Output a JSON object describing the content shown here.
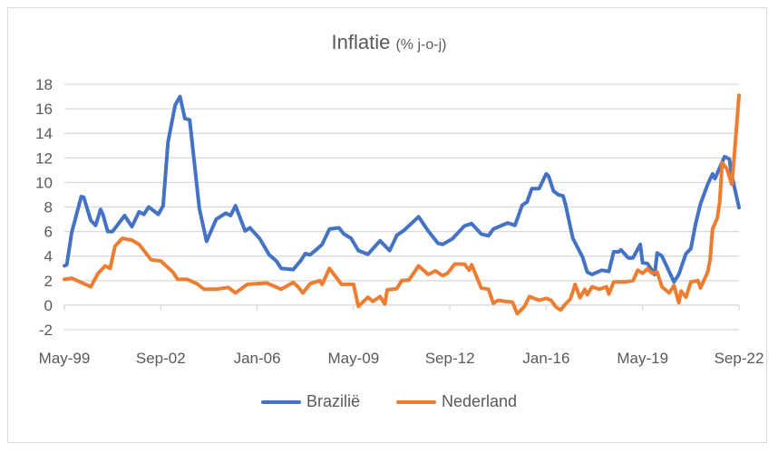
{
  "chart_data": {
    "type": "line",
    "title": "Inflatie",
    "subtitle": "(% j-o-j)",
    "xlabel": "",
    "ylabel": "",
    "ylim": [
      -2,
      18
    ],
    "yticks": [
      -2,
      0,
      2,
      4,
      6,
      8,
      10,
      12,
      14,
      16,
      18
    ],
    "xlim": [
      "1999-05",
      "2022-09"
    ],
    "xtick_labels": [
      "May-99",
      "Sep-02",
      "Jan-06",
      "May-09",
      "Sep-12",
      "Jan-16",
      "May-19",
      "Sep-22"
    ],
    "xticks": [
      "1999-05",
      "2002-09",
      "2006-01",
      "2009-05",
      "2012-09",
      "2016-01",
      "2019-05",
      "2022-09"
    ],
    "grid": true,
    "legend_position": "bottom",
    "series": [
      {
        "name": "Brazilië",
        "color": "#4472C4",
        "points": [
          [
            "1999-05",
            3.2
          ],
          [
            "1999-06",
            3.3
          ],
          [
            "1999-08",
            5.9
          ],
          [
            "1999-12",
            8.85
          ],
          [
            "2000-01",
            8.8
          ],
          [
            "2000-04",
            6.9
          ],
          [
            "2000-06",
            6.5
          ],
          [
            "2000-08",
            7.8
          ],
          [
            "2000-09",
            7.4
          ],
          [
            "2000-11",
            6.0
          ],
          [
            "2001-01",
            6.0
          ],
          [
            "2001-06",
            7.3
          ],
          [
            "2001-09",
            6.4
          ],
          [
            "2001-12",
            7.6
          ],
          [
            "2002-02",
            7.4
          ],
          [
            "2002-04",
            8.0
          ],
          [
            "2002-08",
            7.4
          ],
          [
            "2002-10",
            8.1
          ],
          [
            "2002-12",
            13.3
          ],
          [
            "2003-03",
            16.3
          ],
          [
            "2003-05",
            17.0
          ],
          [
            "2003-07",
            15.2
          ],
          [
            "2003-09",
            15.1
          ],
          [
            "2004-01",
            7.9
          ],
          [
            "2004-04",
            5.2
          ],
          [
            "2004-08",
            7.0
          ],
          [
            "2004-12",
            7.5
          ],
          [
            "2005-02",
            7.3
          ],
          [
            "2005-04",
            8.1
          ],
          [
            "2005-08",
            6.05
          ],
          [
            "2005-10",
            6.3
          ],
          [
            "2006-02",
            5.45
          ],
          [
            "2006-06",
            4.1
          ],
          [
            "2006-09",
            3.6
          ],
          [
            "2006-11",
            3.0
          ],
          [
            "2007-04",
            2.9
          ],
          [
            "2007-07",
            3.6
          ],
          [
            "2007-09",
            4.2
          ],
          [
            "2007-11",
            4.1
          ],
          [
            "2008-02",
            4.6
          ],
          [
            "2008-04",
            4.95
          ],
          [
            "2008-07",
            6.2
          ],
          [
            "2008-11",
            6.3
          ],
          [
            "2009-01",
            5.8
          ],
          [
            "2009-04",
            5.45
          ],
          [
            "2009-07",
            4.45
          ],
          [
            "2009-11",
            4.15
          ],
          [
            "2010-04",
            5.25
          ],
          [
            "2010-08",
            4.45
          ],
          [
            "2010-11",
            5.7
          ],
          [
            "2011-02",
            6.1
          ],
          [
            "2011-05",
            6.65
          ],
          [
            "2011-08",
            7.2
          ],
          [
            "2011-12",
            6.05
          ],
          [
            "2012-04",
            5.05
          ],
          [
            "2012-06",
            4.95
          ],
          [
            "2012-10",
            5.4
          ],
          [
            "2013-03",
            6.45
          ],
          [
            "2013-06",
            6.65
          ],
          [
            "2013-10",
            5.8
          ],
          [
            "2014-01",
            5.65
          ],
          [
            "2014-03",
            6.2
          ],
          [
            "2014-09",
            6.7
          ],
          [
            "2014-12",
            6.5
          ],
          [
            "2015-03",
            8.15
          ],
          [
            "2015-05",
            8.4
          ],
          [
            "2015-07",
            9.5
          ],
          [
            "2015-10",
            9.5
          ],
          [
            "2016-01",
            10.7
          ],
          [
            "2016-02",
            10.5
          ],
          [
            "2016-04",
            9.3
          ],
          [
            "2016-06",
            9.0
          ],
          [
            "2016-08",
            8.9
          ],
          [
            "2016-09",
            8.2
          ],
          [
            "2016-12",
            5.45
          ],
          [
            "2017-04",
            3.95
          ],
          [
            "2017-06",
            2.7
          ],
          [
            "2017-08",
            2.5
          ],
          [
            "2017-12",
            2.85
          ],
          [
            "2018-03",
            2.75
          ],
          [
            "2018-05",
            4.35
          ],
          [
            "2018-07",
            4.35
          ],
          [
            "2018-08",
            4.5
          ],
          [
            "2018-11",
            3.85
          ],
          [
            "2019-01",
            3.85
          ],
          [
            "2019-04",
            4.95
          ],
          [
            "2019-05",
            3.45
          ],
          [
            "2019-07",
            3.4
          ],
          [
            "2019-10",
            2.5
          ],
          [
            "2019-11",
            4.25
          ],
          [
            "2020-01",
            4.0
          ],
          [
            "2020-06",
            1.9
          ],
          [
            "2020-08",
            2.5
          ],
          [
            "2020-11",
            4.2
          ],
          [
            "2021-01",
            4.6
          ],
          [
            "2021-03",
            6.65
          ],
          [
            "2021-05",
            8.25
          ],
          [
            "2021-08",
            9.85
          ],
          [
            "2021-10",
            10.7
          ],
          [
            "2021-11",
            10.3
          ],
          [
            "2022-03",
            12.1
          ],
          [
            "2022-05",
            11.9
          ],
          [
            "2022-06",
            10.6
          ],
          [
            "2022-09",
            7.95
          ]
        ]
      },
      {
        "name": "Nederland",
        "color": "#ED7D31",
        "points": [
          [
            "1999-05",
            2.1
          ],
          [
            "1999-08",
            2.2
          ],
          [
            "2000-04",
            1.5
          ],
          [
            "2000-07",
            2.6
          ],
          [
            "2000-10",
            3.2
          ],
          [
            "2000-12",
            3.0
          ],
          [
            "2001-02",
            4.8
          ],
          [
            "2001-05",
            5.45
          ],
          [
            "2001-09",
            5.3
          ],
          [
            "2001-12",
            4.95
          ],
          [
            "2002-05",
            3.7
          ],
          [
            "2002-09",
            3.6
          ],
          [
            "2003-02",
            2.7
          ],
          [
            "2003-04",
            2.1
          ],
          [
            "2003-08",
            2.1
          ],
          [
            "2003-12",
            1.75
          ],
          [
            "2004-03",
            1.3
          ],
          [
            "2004-08",
            1.3
          ],
          [
            "2005-01",
            1.45
          ],
          [
            "2005-04",
            1.0
          ],
          [
            "2005-09",
            1.7
          ],
          [
            "2006-05",
            1.8
          ],
          [
            "2006-11",
            1.3
          ],
          [
            "2007-04",
            1.85
          ],
          [
            "2007-06",
            1.5
          ],
          [
            "2007-08",
            1.0
          ],
          [
            "2007-11",
            1.75
          ],
          [
            "2008-03",
            2.0
          ],
          [
            "2008-04",
            1.7
          ],
          [
            "2008-07",
            3.0
          ],
          [
            "2008-12",
            1.7
          ],
          [
            "2009-05",
            1.7
          ],
          [
            "2009-07",
            -0.1
          ],
          [
            "2009-11",
            0.65
          ],
          [
            "2010-01",
            0.3
          ],
          [
            "2010-04",
            0.7
          ],
          [
            "2010-06",
            0.1
          ],
          [
            "2010-07",
            1.25
          ],
          [
            "2010-11",
            1.35
          ],
          [
            "2011-01",
            2.0
          ],
          [
            "2011-04",
            2.05
          ],
          [
            "2011-08",
            3.2
          ],
          [
            "2011-12",
            2.5
          ],
          [
            "2012-03",
            2.8
          ],
          [
            "2012-06",
            2.4
          ],
          [
            "2012-08",
            2.6
          ],
          [
            "2012-11",
            3.35
          ],
          [
            "2013-03",
            3.35
          ],
          [
            "2013-05",
            2.85
          ],
          [
            "2013-06",
            3.3
          ],
          [
            "2013-10",
            1.4
          ],
          [
            "2014-01",
            1.3
          ],
          [
            "2014-03",
            0.15
          ],
          [
            "2014-05",
            0.4
          ],
          [
            "2014-08",
            0.3
          ],
          [
            "2014-11",
            0.25
          ],
          [
            "2015-01",
            -0.7
          ],
          [
            "2015-04",
            -0.1
          ],
          [
            "2015-06",
            0.7
          ],
          [
            "2015-08",
            0.55
          ],
          [
            "2015-10",
            0.4
          ],
          [
            "2016-01",
            0.55
          ],
          [
            "2016-03",
            0.4
          ],
          [
            "2016-05",
            -0.15
          ],
          [
            "2016-07",
            -0.4
          ],
          [
            "2016-09",
            0.1
          ],
          [
            "2016-11",
            0.5
          ],
          [
            "2017-01",
            1.7
          ],
          [
            "2017-03",
            0.6
          ],
          [
            "2017-05",
            1.3
          ],
          [
            "2017-06",
            0.85
          ],
          [
            "2017-08",
            1.5
          ],
          [
            "2017-11",
            1.3
          ],
          [
            "2018-02",
            1.5
          ],
          [
            "2018-03",
            0.9
          ],
          [
            "2018-05",
            1.9
          ],
          [
            "2018-10",
            1.9
          ],
          [
            "2019-01",
            2.0
          ],
          [
            "2019-03",
            2.85
          ],
          [
            "2019-05",
            2.6
          ],
          [
            "2019-07",
            2.95
          ],
          [
            "2019-09",
            2.6
          ],
          [
            "2019-11",
            2.7
          ],
          [
            "2020-01",
            1.5
          ],
          [
            "2020-04",
            1.0
          ],
          [
            "2020-06",
            1.6
          ],
          [
            "2020-08",
            0.2
          ],
          [
            "2020-09",
            1.15
          ],
          [
            "2020-11",
            0.65
          ],
          [
            "2021-01",
            1.9
          ],
          [
            "2021-04",
            2.0
          ],
          [
            "2021-05",
            1.4
          ],
          [
            "2021-08",
            2.7
          ],
          [
            "2021-09",
            3.7
          ],
          [
            "2021-10",
            6.2
          ],
          [
            "2021-12",
            7.1
          ],
          [
            "2022-01",
            8.4
          ],
          [
            "2022-02",
            11.6
          ],
          [
            "2022-04",
            11.1
          ],
          [
            "2022-06",
            9.85
          ],
          [
            "2022-07",
            12.1
          ],
          [
            "2022-09",
            17.1
          ]
        ]
      }
    ]
  }
}
